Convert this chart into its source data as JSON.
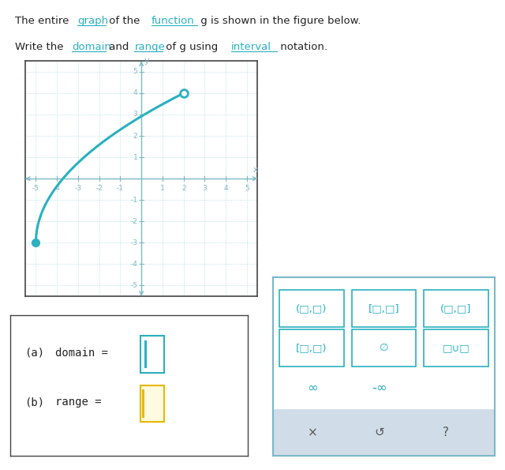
{
  "graph_xlim": [
    -5.5,
    5.5
  ],
  "graph_ylim": [
    -5.5,
    5.5
  ],
  "curve_color": "#2ab0c0",
  "grid_color": "#b0d8e0",
  "axis_color": "#7ab8c8",
  "tick_label_color": "#7ab8c8",
  "graph_bg": "#ffffff",
  "graph_border_color": "#444444",
  "box_bg": "#ffffff",
  "box_border": "#444444",
  "panel_bg": "#ffffff",
  "panel_border": "#7ab8c8",
  "bottom_btn_bg": "#d0dde8",
  "teal": "#2ab0c0",
  "dark_text": "#222222",
  "gray_text": "#555555",
  "link_color": "#2ab0c0",
  "input_border_a": "#2ab0c0",
  "input_border_b": "#e8b800",
  "cursor_color_a": "#2ab0c0",
  "cursor_color_b": "#e8b800"
}
